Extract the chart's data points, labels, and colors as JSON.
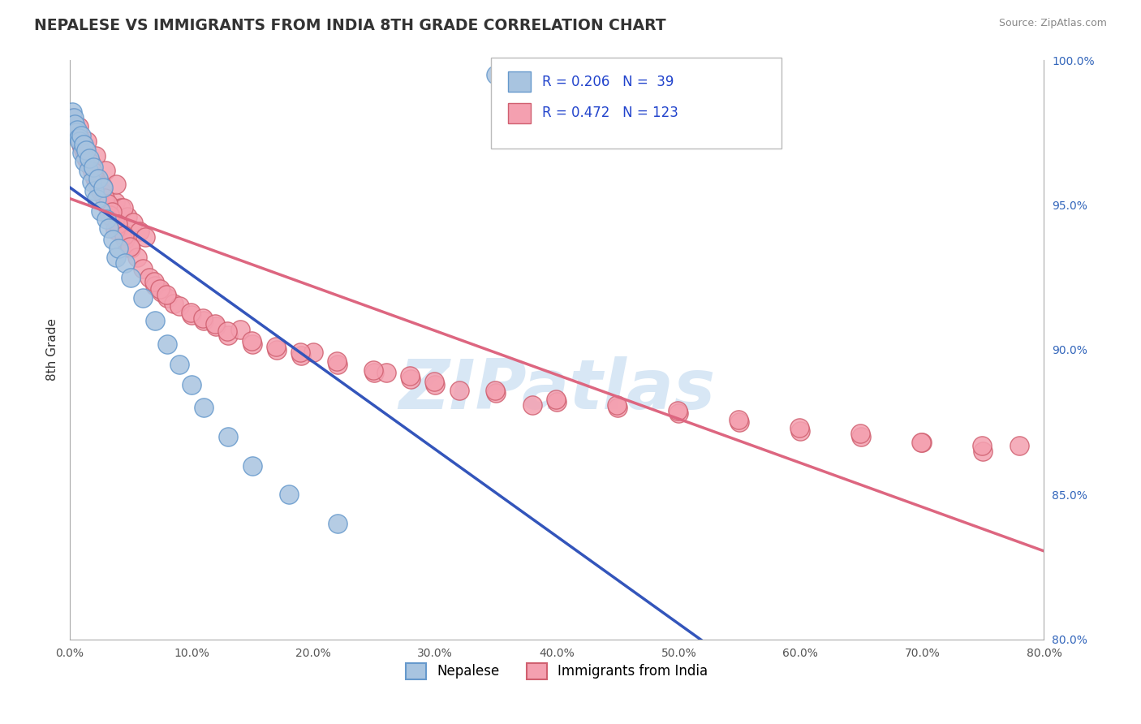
{
  "title": "NEPALESE VS IMMIGRANTS FROM INDIA 8TH GRADE CORRELATION CHART",
  "source_text": "Source: ZipAtlas.com",
  "ylabel": "8th Grade",
  "xlim": [
    0.0,
    80.0
  ],
  "ylim": [
    80.0,
    100.0
  ],
  "x_ticks": [
    0.0,
    10.0,
    20.0,
    30.0,
    40.0,
    50.0,
    60.0,
    70.0,
    80.0
  ],
  "y_ticks_right": [
    80.0,
    85.0,
    90.0,
    95.0,
    100.0
  ],
  "background_color": "#ffffff",
  "watermark": "ZIPatlas",
  "legend_r1": "R = 0.206",
  "legend_n1": "N =  39",
  "legend_r2": "R = 0.472",
  "legend_n2": "N = 123",
  "nepalese_color": "#a8c4e0",
  "india_color": "#f4a0b0",
  "nepalese_edge": "#6699cc",
  "india_edge": "#d06070",
  "trendline_blue": "#3355bb",
  "trendline_pink": "#dd6680",
  "grid_color": "#cccccc",
  "title_color": "#333333",
  "nepalese_x": [
    0.2,
    0.3,
    0.4,
    0.5,
    0.6,
    0.7,
    0.8,
    0.9,
    1.0,
    1.1,
    1.2,
    1.3,
    1.5,
    1.6,
    1.8,
    1.9,
    2.0,
    2.2,
    2.3,
    2.5,
    2.7,
    3.0,
    3.2,
    3.5,
    3.8,
    4.0,
    4.5,
    5.0,
    6.0,
    7.0,
    8.0,
    9.0,
    10.0,
    11.0,
    13.0,
    15.0,
    18.0,
    22.0,
    35.0
  ],
  "nepalese_y": [
    98.2,
    98.0,
    97.8,
    97.5,
    97.6,
    97.3,
    97.2,
    97.4,
    96.8,
    97.1,
    96.5,
    96.9,
    96.2,
    96.6,
    95.8,
    96.3,
    95.5,
    95.2,
    95.9,
    94.8,
    95.6,
    94.5,
    94.2,
    93.8,
    93.2,
    93.5,
    93.0,
    92.5,
    91.8,
    91.0,
    90.2,
    89.5,
    88.8,
    88.0,
    87.0,
    86.0,
    85.0,
    84.0,
    99.5
  ],
  "india_x": [
    0.2,
    0.3,
    0.4,
    0.5,
    0.6,
    0.7,
    0.8,
    0.9,
    1.0,
    1.1,
    1.2,
    1.3,
    1.5,
    1.6,
    1.8,
    1.9,
    2.0,
    2.2,
    2.3,
    2.5,
    2.7,
    2.8,
    3.0,
    3.2,
    3.5,
    3.7,
    4.0,
    4.2,
    4.5,
    4.7,
    5.0,
    5.5,
    6.0,
    6.5,
    7.0,
    7.5,
    8.0,
    8.5,
    9.0,
    10.0,
    11.0,
    12.0,
    13.0,
    14.0,
    15.0,
    17.0,
    19.0,
    20.0,
    22.0,
    25.0,
    26.0,
    28.0,
    30.0,
    32.0,
    35.0,
    38.0,
    40.0,
    45.0,
    50.0,
    55.0,
    60.0,
    65.0,
    70.0,
    75.0,
    78.0,
    1.4,
    2.1,
    2.9,
    3.8,
    4.4,
    5.2,
    5.7,
    6.2,
    6.9,
    7.4,
    7.9,
    9.9,
    10.9,
    11.9,
    12.9,
    14.9,
    16.9,
    18.9,
    21.9,
    24.9,
    27.9,
    29.9,
    34.9,
    39.9,
    44.9,
    49.9,
    54.9,
    59.9,
    64.9,
    69.9,
    74.9,
    0.35,
    0.55,
    0.65,
    0.75,
    0.85,
    1.05,
    1.15,
    1.25,
    1.45,
    1.65,
    1.75,
    1.85,
    2.05,
    2.15,
    2.25,
    2.55,
    2.65,
    2.85,
    3.15,
    3.25,
    3.45,
    3.75,
    3.95,
    4.45,
    4.95
  ],
  "india_y": [
    98.0,
    97.8,
    97.6,
    97.5,
    97.4,
    97.7,
    97.3,
    97.1,
    97.0,
    96.9,
    96.8,
    96.6,
    96.5,
    96.4,
    96.3,
    96.1,
    96.0,
    95.8,
    95.9,
    95.5,
    95.6,
    95.3,
    95.0,
    94.8,
    94.5,
    95.1,
    94.2,
    94.9,
    93.8,
    94.6,
    93.5,
    93.2,
    92.8,
    92.5,
    92.2,
    92.0,
    91.8,
    91.6,
    91.5,
    91.2,
    91.0,
    90.8,
    90.5,
    90.7,
    90.2,
    90.0,
    89.8,
    89.9,
    89.5,
    89.2,
    89.2,
    89.0,
    88.8,
    88.6,
    88.5,
    88.1,
    88.2,
    88.0,
    87.8,
    87.5,
    87.2,
    87.0,
    86.8,
    86.5,
    86.7,
    97.2,
    96.7,
    96.2,
    95.7,
    94.9,
    94.4,
    94.1,
    93.9,
    92.35,
    92.1,
    91.9,
    91.3,
    91.1,
    90.9,
    90.65,
    90.3,
    90.1,
    89.9,
    89.6,
    89.3,
    89.1,
    88.9,
    88.6,
    88.3,
    88.1,
    87.9,
    87.6,
    87.3,
    87.1,
    86.8,
    86.7,
    97.7,
    97.55,
    97.45,
    97.35,
    97.25,
    97.05,
    96.95,
    96.85,
    96.55,
    96.35,
    96.45,
    96.15,
    95.95,
    95.85,
    95.75,
    95.45,
    95.65,
    95.25,
    95.05,
    94.65,
    94.75,
    94.15,
    94.35,
    93.95,
    93.55
  ]
}
